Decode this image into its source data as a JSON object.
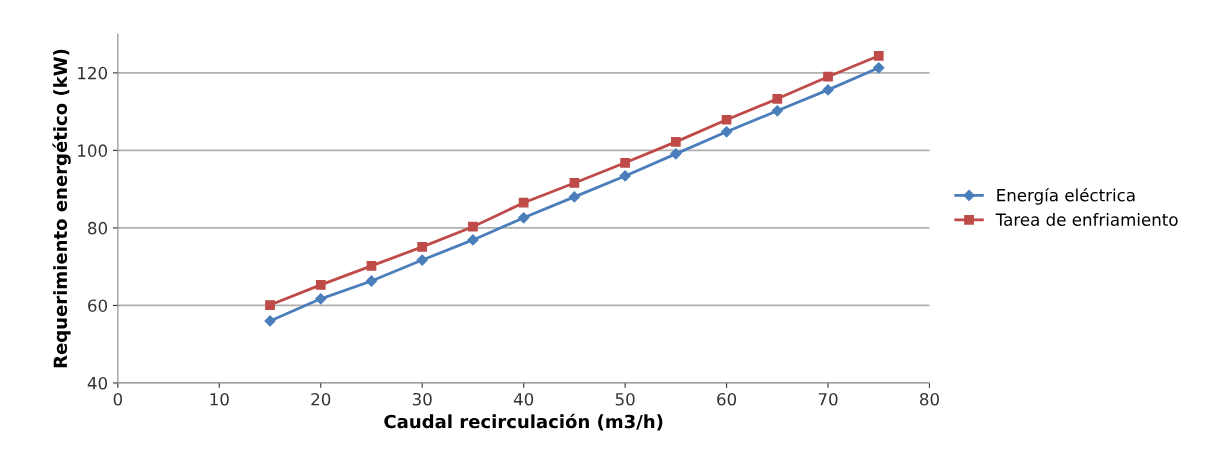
{
  "chart_data": {
    "type": "line",
    "xlabel": "Caudal recirculación (m3/h)",
    "ylabel": "Requerimiento energético (kW)",
    "x": [
      15,
      20,
      25,
      30,
      35,
      40,
      45,
      50,
      55,
      60,
      65,
      70,
      75
    ],
    "series": [
      {
        "name": "Energía eléctrica",
        "color": "#4a7ebb",
        "marker": "diamond",
        "values": [
          56.0,
          61.7,
          66.3,
          71.7,
          76.9,
          82.6,
          88.0,
          93.4,
          99.1,
          104.8,
          110.2,
          115.6,
          121.3
        ]
      },
      {
        "name": "Tarea de enfriamiento",
        "color": "#be4b48",
        "marker": "square",
        "values": [
          60.1,
          65.3,
          70.2,
          75.1,
          80.3,
          86.5,
          91.6,
          96.8,
          102.2,
          107.9,
          113.3,
          119.0,
          124.4
        ]
      }
    ],
    "xlim": [
      0,
      80
    ],
    "xticks": [
      0,
      10,
      20,
      30,
      40,
      50,
      60,
      70,
      80
    ],
    "ylim": [
      40,
      130
    ],
    "yticks": [
      40,
      60,
      80,
      100,
      120
    ],
    "grid": "y",
    "legend": "right",
    "line_style": "solid"
  }
}
